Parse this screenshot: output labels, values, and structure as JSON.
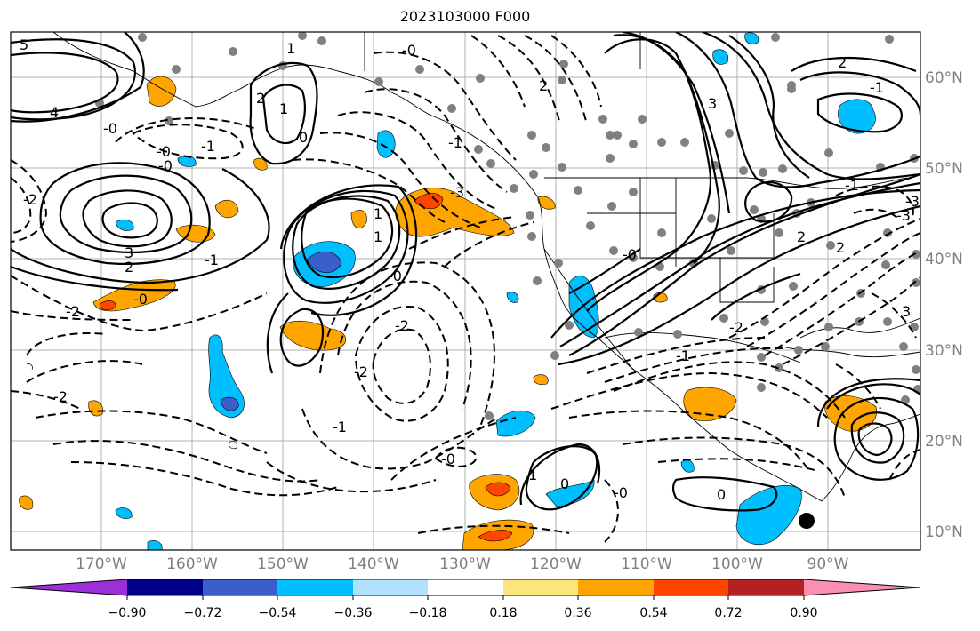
{
  "title": "2023103000 F000",
  "lat_labels": [
    "60°N",
    "50°N",
    "40°N",
    "30°N",
    "20°N",
    "10°N"
  ],
  "lon_labels": [
    "170°W",
    "160°W",
    "150°W",
    "140°W",
    "130°W",
    "120°W",
    "110°W",
    "100°W",
    "90°W"
  ],
  "colorbar": {
    "tick_labels": [
      "−0.90",
      "−0.72",
      "−0.54",
      "−0.36",
      "−0.18",
      "0.18",
      "0.36",
      "0.54",
      "0.72",
      "0.90"
    ],
    "colors": [
      "#9b30d9",
      "#00008b",
      "#3a5fcd",
      "#00bfff",
      "#b0e2ff",
      "#ffffff",
      "#fce57f",
      "#ffa500",
      "#ff4500",
      "#b22222",
      "#f98fb2"
    ]
  },
  "contour_labels": [
    "5",
    "4",
    "-0",
    "-0",
    "1",
    "1",
    "0",
    "2",
    "-0",
    "2",
    "-1",
    "1",
    "-1",
    "3",
    "-0",
    "2",
    "1",
    "-2",
    "-2",
    "-3",
    "3",
    "2",
    "-1",
    "-0",
    "-0",
    "-3",
    "3",
    "-2",
    "-2",
    "-1",
    "-0",
    "-0",
    "-1",
    "-2",
    "-1",
    "-0",
    "1",
    "0",
    "0",
    "2",
    "-3",
    "2",
    "-2",
    "-1"
  ]
}
